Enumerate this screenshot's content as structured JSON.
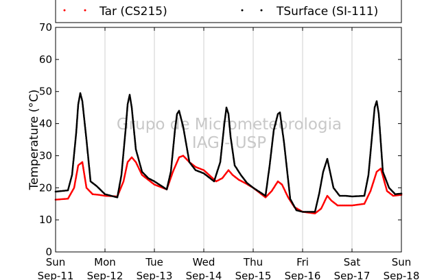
{
  "chart_data": {
    "type": "scatter",
    "title": "",
    "xlabel": "",
    "ylabel": "Temperature (°C)",
    "ylim": [
      0,
      70
    ],
    "yticks": [
      0,
      10,
      20,
      30,
      40,
      50,
      60,
      70
    ],
    "xlim": [
      "Sep-11 00:00",
      "Sep-18 00:00"
    ],
    "x_tick_labels": [
      {
        "day": "Sun",
        "date": "Sep-11"
      },
      {
        "day": "Mon",
        "date": "Sep-12"
      },
      {
        "day": "Tue",
        "date": "Sep-13"
      },
      {
        "day": "Wed",
        "date": "Sep-14"
      },
      {
        "day": "Thu",
        "date": "Sep-15"
      },
      {
        "day": "Fri",
        "date": "Sep-16"
      },
      {
        "day": "Sat",
        "date": "Sep-17"
      },
      {
        "day": "Sun",
        "date": "Sep-18"
      }
    ],
    "grid": "vertical",
    "legend": "top",
    "watermark": [
      "Grupo de Micrometeorologia",
      "IAG - USP"
    ],
    "series": [
      {
        "name": "Tar (CS215)",
        "color": "#ff0000",
        "x": [
          "Sep-11 00:00",
          "Sep-11 06:00",
          "Sep-11 09:00",
          "Sep-11 11:00",
          "Sep-11 13:00",
          "Sep-11 15:00",
          "Sep-11 18:00",
          "Sep-11 21:00",
          "Sep-12 00:00",
          "Sep-12 06:00",
          "Sep-12 09:00",
          "Sep-12 11:00",
          "Sep-12 13:00",
          "Sep-12 15:00",
          "Sep-12 18:00",
          "Sep-12 21:00",
          "Sep-13 00:00",
          "Sep-13 06:00",
          "Sep-13 09:00",
          "Sep-13 12:00",
          "Sep-13 14:00",
          "Sep-13 17:00",
          "Sep-13 20:00",
          "Sep-14 00:00",
          "Sep-14 06:00",
          "Sep-14 09:00",
          "Sep-14 12:00",
          "Sep-14 14:00",
          "Sep-14 17:00",
          "Sep-14 20:00",
          "Sep-15 00:00",
          "Sep-15 06:00",
          "Sep-15 09:00",
          "Sep-15 12:00",
          "Sep-15 14:00",
          "Sep-15 17:00",
          "Sep-15 20:00",
          "Sep-16 00:00",
          "Sep-16 06:00",
          "Sep-16 09:00",
          "Sep-16 12:00",
          "Sep-16 14:00",
          "Sep-16 17:00",
          "Sep-16 20:00",
          "Sep-17 00:00",
          "Sep-17 06:00",
          "Sep-17 09:00",
          "Sep-17 12:00",
          "Sep-17 14:00",
          "Sep-17 17:00",
          "Sep-17 20:00",
          "Sep-18 00:00"
        ],
        "y": [
          16.3,
          16.6,
          20,
          27,
          28,
          20,
          18,
          17.8,
          17.5,
          17.3,
          22,
          28,
          29.5,
          28,
          24,
          22.5,
          21,
          19.5,
          25,
          29.5,
          30,
          28,
          26.5,
          25.5,
          22,
          23,
          25.5,
          24,
          22.5,
          21.5,
          20,
          17,
          19,
          22,
          21,
          17,
          14,
          12.5,
          12,
          13.5,
          17.5,
          16,
          14.5,
          14.5,
          14.5,
          15,
          19,
          25,
          26,
          19,
          17.5,
          17.8
        ]
      },
      {
        "name": "TSurface (SI-111)",
        "color": "#000000",
        "x": [
          "Sep-11 00:00",
          "Sep-11 06:00",
          "Sep-11 08:00",
          "Sep-11 10:00",
          "Sep-11 11:00",
          "Sep-11 12:00",
          "Sep-11 13:00",
          "Sep-11 15:00",
          "Sep-11 17:00",
          "Sep-11 20:00",
          "Sep-12 00:00",
          "Sep-12 06:00",
          "Sep-12 08:00",
          "Sep-12 10:00",
          "Sep-12 11:00",
          "Sep-12 12:00",
          "Sep-12 13:00",
          "Sep-12 15:00",
          "Sep-12 18:00",
          "Sep-12 21:00",
          "Sep-13 00:00",
          "Sep-13 06:00",
          "Sep-13 08:00",
          "Sep-13 10:00",
          "Sep-13 11:00",
          "Sep-13 12:00",
          "Sep-13 14:00",
          "Sep-13 17:00",
          "Sep-13 20:00",
          "Sep-14 00:00",
          "Sep-14 05:00",
          "Sep-14 08:00",
          "Sep-14 10:00",
          "Sep-14 11:00",
          "Sep-14 12:00",
          "Sep-14 13:00",
          "Sep-14 15:00",
          "Sep-14 18:00",
          "Sep-14 21:00",
          "Sep-15 00:00",
          "Sep-15 06:00",
          "Sep-15 08:00",
          "Sep-15 10:00",
          "Sep-15 12:00",
          "Sep-15 13:00",
          "Sep-15 15:00",
          "Sep-15 18:00",
          "Sep-15 21:00",
          "Sep-16 00:00",
          "Sep-16 06:00",
          "Sep-16 08:00",
          "Sep-16 10:00",
          "Sep-16 12:00",
          "Sep-16 13:00",
          "Sep-16 15:00",
          "Sep-16 18:00",
          "Sep-16 21:00",
          "Sep-17 00:00",
          "Sep-17 06:00",
          "Sep-17 08:00",
          "Sep-17 10:00",
          "Sep-17 11:00",
          "Sep-17 12:00",
          "Sep-17 13:00",
          "Sep-17 15:00",
          "Sep-17 18:00",
          "Sep-17 21:00",
          "Sep-18 00:00"
        ],
        "y": [
          18.8,
          19.2,
          24,
          37,
          46,
          49.5,
          47,
          35,
          22,
          20.5,
          18,
          17,
          24,
          38,
          46,
          49,
          45,
          32,
          25,
          23,
          22,
          19.5,
          25,
          38,
          43,
          44,
          39,
          28,
          25.5,
          24.5,
          22,
          28,
          40,
          45,
          43,
          36,
          27,
          24,
          21.5,
          20,
          17.5,
          27,
          38,
          43,
          43.5,
          34,
          16.5,
          13,
          12.5,
          12.5,
          18,
          25,
          29,
          26,
          20,
          17.5,
          17.5,
          17.3,
          17.5,
          24,
          38,
          45,
          47,
          43,
          25,
          20,
          18,
          18.2
        ]
      }
    ]
  }
}
